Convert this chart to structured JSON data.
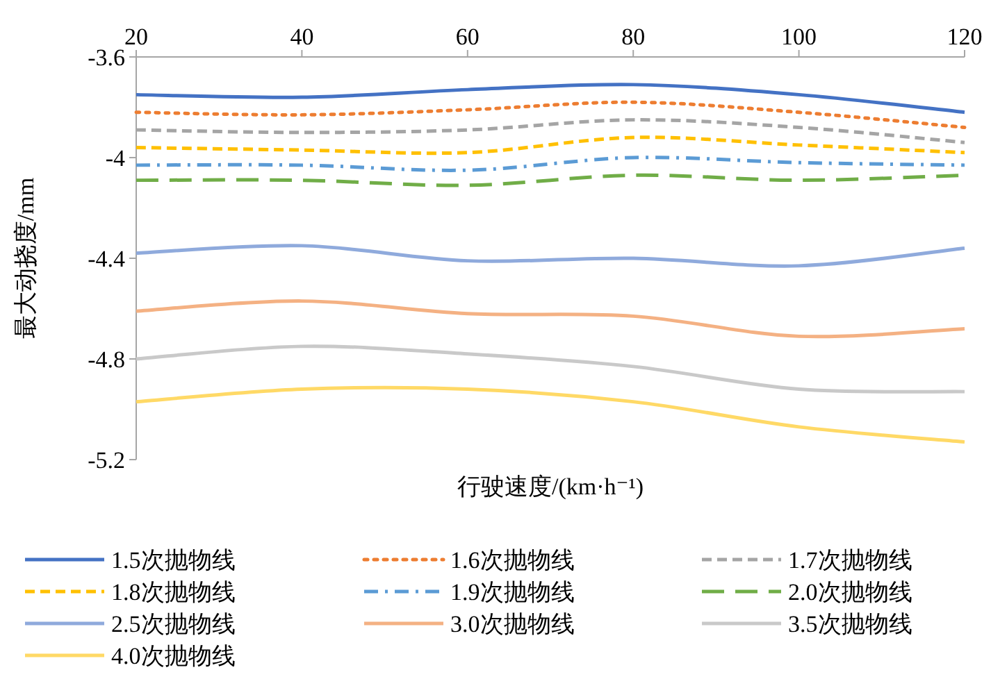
{
  "chart_data": {
    "type": "line",
    "xlabel": "行驶速度/(km·h⁻¹)",
    "ylabel": "最大动挠度/mm",
    "x": [
      20,
      40,
      60,
      80,
      100,
      120
    ],
    "xlim": [
      20,
      120
    ],
    "xticks": [
      20,
      40,
      60,
      80,
      100,
      120
    ],
    "ylim": [
      -5.2,
      -3.6
    ],
    "yticks": [
      -3.6,
      -4,
      -4.4,
      -4.8,
      -5.2
    ],
    "grid": false,
    "legend": "bottom",
    "marker": "none",
    "series": [
      {
        "name": "1.5次抛物线",
        "color": "#4472c4",
        "line_style": "solid",
        "values": [
          -3.75,
          -3.76,
          -3.73,
          -3.71,
          -3.75,
          -3.82
        ]
      },
      {
        "name": "1.6次抛物线",
        "color": "#ed7d31",
        "line_style": "dotted",
        "values": [
          -3.82,
          -3.83,
          -3.81,
          -3.78,
          -3.82,
          -3.88
        ]
      },
      {
        "name": "1.7次抛物线",
        "color": "#a5a5a5",
        "line_style": "dashed",
        "values": [
          -3.89,
          -3.9,
          -3.89,
          -3.85,
          -3.88,
          -3.94
        ]
      },
      {
        "name": "1.8次抛物线",
        "color": "#ffc000",
        "line_style": "dashed",
        "values": [
          -3.96,
          -3.97,
          -3.98,
          -3.92,
          -3.95,
          -3.98
        ]
      },
      {
        "name": "1.9次抛物线",
        "color": "#5b9bd5",
        "line_style": "dashdot",
        "values": [
          -4.03,
          -4.03,
          -4.05,
          -4.0,
          -4.02,
          -4.03
        ]
      },
      {
        "name": "2.0次抛物线",
        "color": "#70ad47",
        "line_style": "longdashed",
        "values": [
          -4.09,
          -4.09,
          -4.11,
          -4.07,
          -4.09,
          -4.07
        ]
      },
      {
        "name": "2.5次抛物线",
        "color": "#8faadc",
        "line_style": "solid",
        "values": [
          -4.38,
          -4.35,
          -4.41,
          -4.4,
          -4.43,
          -4.36
        ]
      },
      {
        "name": "3.0次抛物线",
        "color": "#f4b183",
        "line_style": "solid",
        "values": [
          -4.61,
          -4.57,
          -4.62,
          -4.63,
          -4.71,
          -4.68
        ]
      },
      {
        "name": "3.5次抛物线",
        "color": "#c9c9c9",
        "line_style": "solid",
        "values": [
          -4.8,
          -4.75,
          -4.78,
          -4.83,
          -4.92,
          -4.93
        ]
      },
      {
        "name": "4.0次抛物线",
        "color": "#ffd966",
        "line_style": "solid",
        "values": [
          -4.97,
          -4.92,
          -4.92,
          -4.97,
          -5.07,
          -5.13
        ]
      }
    ]
  }
}
